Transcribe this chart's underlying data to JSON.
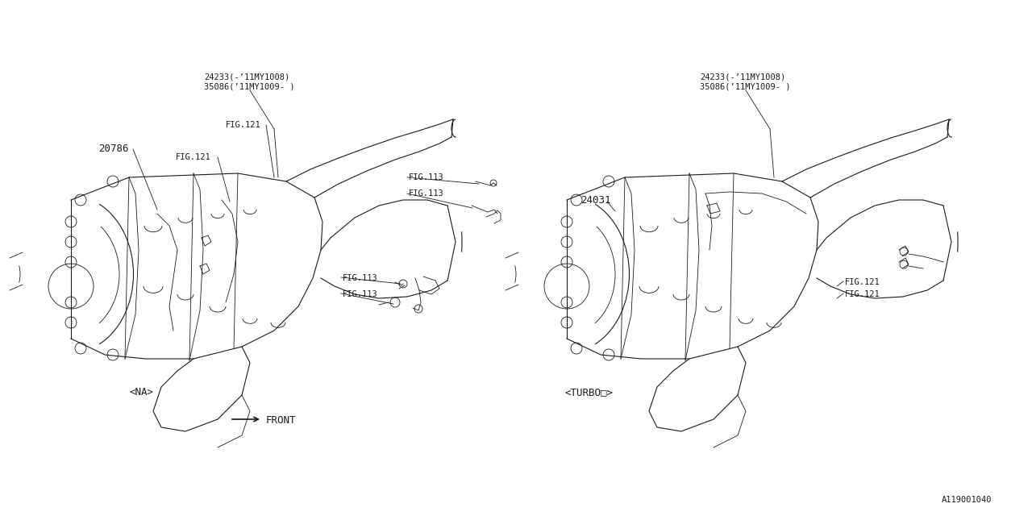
{
  "bg_color": "#ffffff",
  "line_color": "#1a1a1a",
  "diagram_id": "A119001040",
  "labels": {
    "na_label": "<NA>",
    "turbo_label": "<TURBO□>",
    "front_label": "FRONT",
    "part_20786": "20786",
    "part_24031": "24031",
    "part_24233_left_line1": "24233(-’11MY1008)",
    "part_24233_left_line2": "35086(’11MY1009- )",
    "part_24233_right_line1": "24233(-’11MY1008)",
    "part_24233_right_line2": "35086(’11MY1009- )",
    "fig121_left1": "FIG.121",
    "fig121_left2": "FIG.121",
    "fig113_1": "FIG.113",
    "fig113_2": "FIG.113",
    "fig113_3": "FIG.113",
    "fig113_4": "FIG.113",
    "fig121_right1": "FIG.121",
    "fig121_right2": "FIG.121"
  },
  "font_size_tiny": 7.5,
  "font_size_small": 8.5,
  "font_size_label": 9
}
